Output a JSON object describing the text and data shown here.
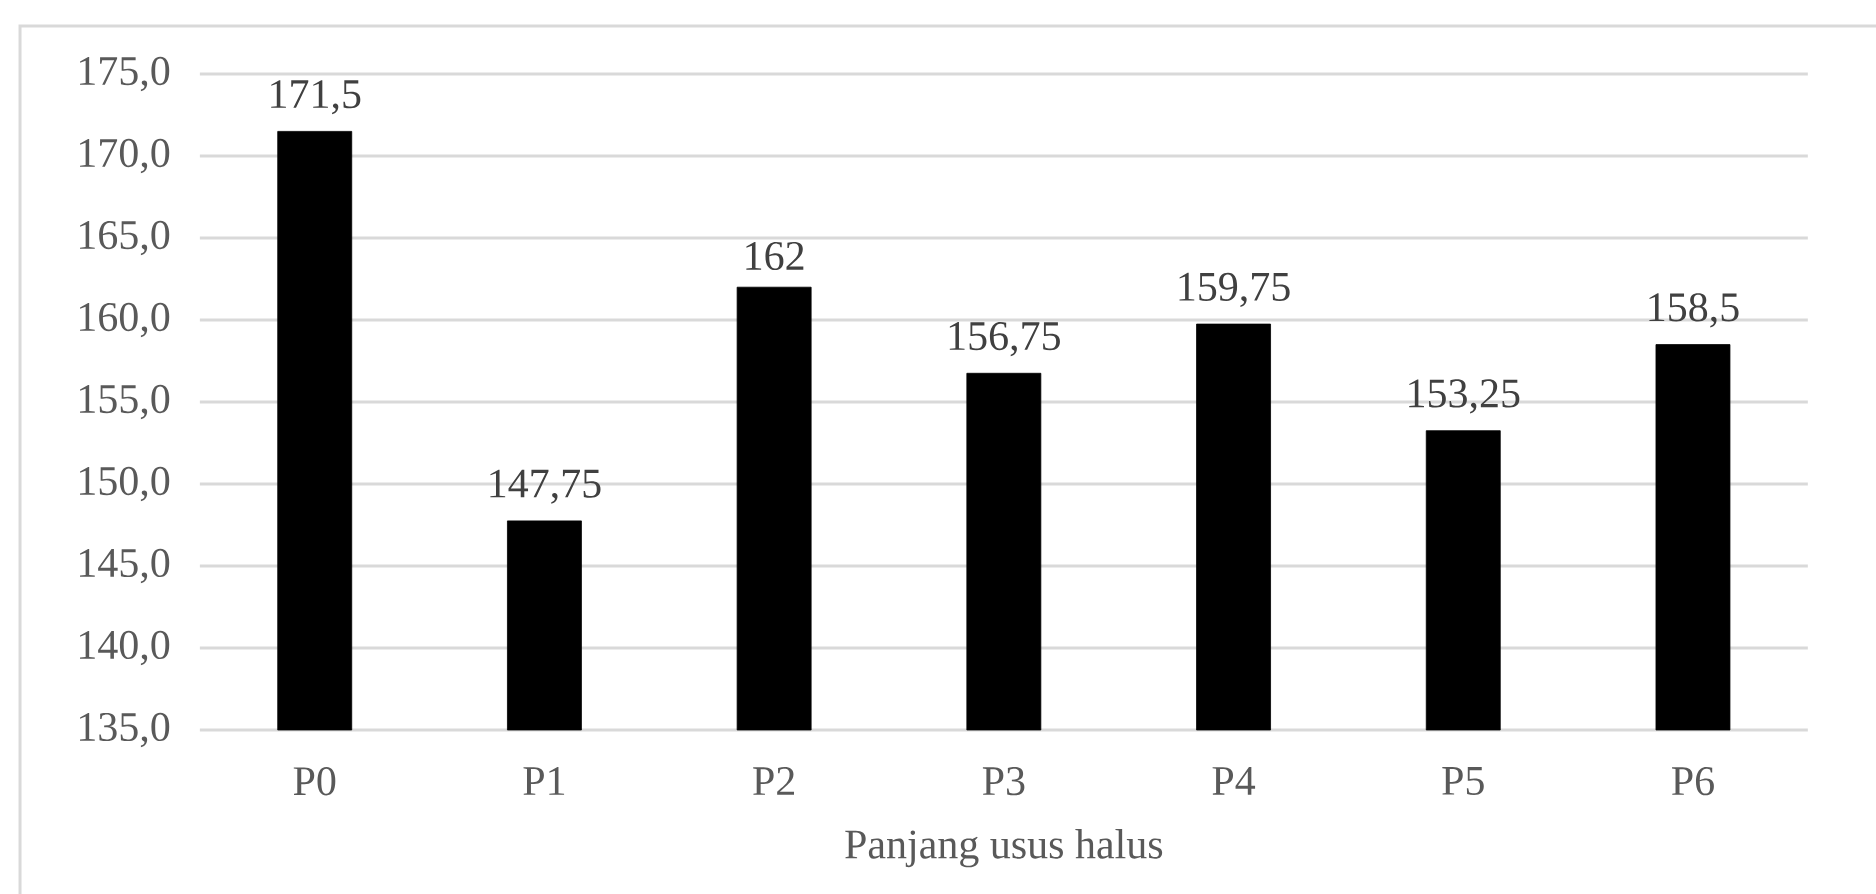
{
  "chart_data": {
    "type": "bar",
    "xlabel": "Panjang usus halus",
    "categories": [
      "P0",
      "P1",
      "P2",
      "P3",
      "P4",
      "P5",
      "P6"
    ],
    "values": [
      171.5,
      147.75,
      162,
      156.75,
      159.75,
      153.25,
      158.5
    ],
    "value_labels": [
      "171,5",
      "147,75",
      "162",
      "156,75",
      "159,75",
      "153,25",
      "158,5"
    ],
    "color": "#000000",
    "ylim": [
      135,
      175
    ],
    "yticks": [
      {
        "value": 135,
        "label": "135,0"
      },
      {
        "value": 140,
        "label": "140,0"
      },
      {
        "value": 145,
        "label": "145,0"
      },
      {
        "value": 150,
        "label": "150,0"
      },
      {
        "value": 155,
        "label": "155,0"
      },
      {
        "value": 160,
        "label": "160,0"
      },
      {
        "value": 165,
        "label": "165,0"
      },
      {
        "value": 170,
        "label": "170,0"
      },
      {
        "value": 175,
        "label": "175,0"
      }
    ],
    "grid": "y"
  }
}
